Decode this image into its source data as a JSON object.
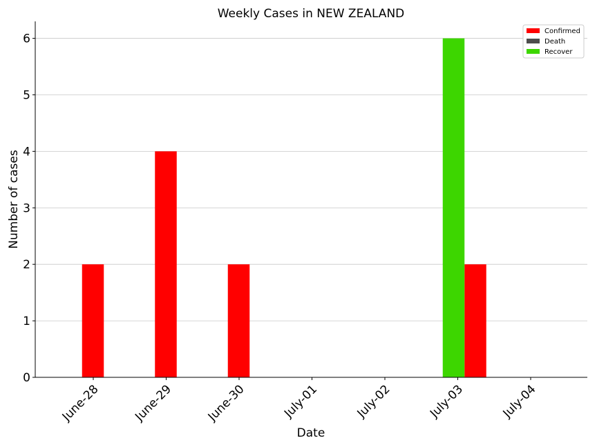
{
  "chart_data": {
    "type": "bar",
    "title": "Weekly Cases in NEW ZEALAND",
    "xlabel": "Date",
    "ylabel": "Number of cases",
    "categories": [
      "June-28",
      "June-29",
      "June-30",
      "July-01",
      "July-02",
      "July-03",
      "July-04"
    ],
    "series": [
      {
        "name": "Confirmed",
        "color": "#ff0000",
        "values": [
          2,
          4,
          2,
          0,
          0,
          2,
          0
        ]
      },
      {
        "name": "Death",
        "color": "#4d4d4d",
        "values": [
          0,
          0,
          0,
          0,
          0,
          0,
          0
        ]
      },
      {
        "name": "Recover",
        "color": "#3dd600",
        "values": [
          0,
          0,
          0,
          0,
          0,
          6,
          0
        ]
      }
    ],
    "ylim": [
      0,
      6.3
    ],
    "yticks": [
      "0",
      "1",
      "2",
      "3",
      "4",
      "5",
      "6"
    ],
    "grid": "horizontal",
    "legend_position": "top-right"
  }
}
